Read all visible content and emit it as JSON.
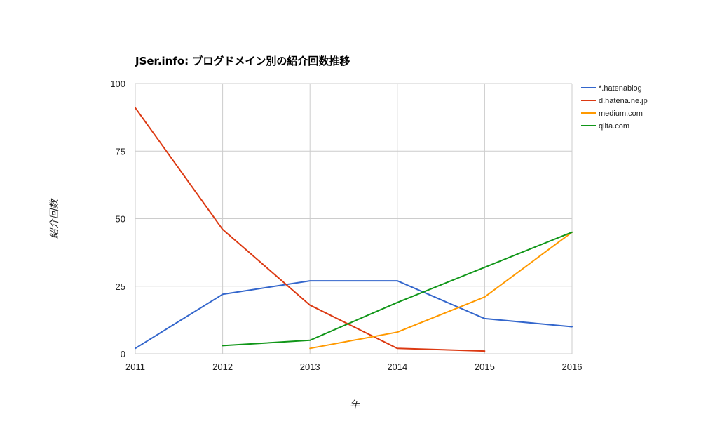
{
  "chart_data": {
    "type": "line",
    "title": "JSer.info: ブログドメイン別の紹介回数推移",
    "xlabel": "年",
    "ylabel": "紹介回数",
    "x": [
      "2011",
      "2012",
      "2013",
      "2014",
      "2015",
      "2016"
    ],
    "xlim": [
      2011,
      2016
    ],
    "ylim": [
      0,
      100
    ],
    "yticks": [
      "0",
      "25",
      "50",
      "75",
      "100"
    ],
    "grid": true,
    "legend_position": "right",
    "series": [
      {
        "name": "*.hatenablog",
        "color": "#3366cc",
        "values": [
          2,
          22,
          27,
          27,
          13,
          10
        ]
      },
      {
        "name": "d.hatena.ne.jp",
        "color": "#dc3912",
        "values": [
          91,
          46,
          18,
          2,
          1,
          null
        ]
      },
      {
        "name": "medium.com",
        "color": "#ff9900",
        "values": [
          null,
          null,
          2,
          8,
          21,
          45
        ]
      },
      {
        "name": "qiita.com",
        "color": "#109618",
        "values": [
          null,
          3,
          5,
          19,
          32,
          45
        ]
      }
    ]
  }
}
